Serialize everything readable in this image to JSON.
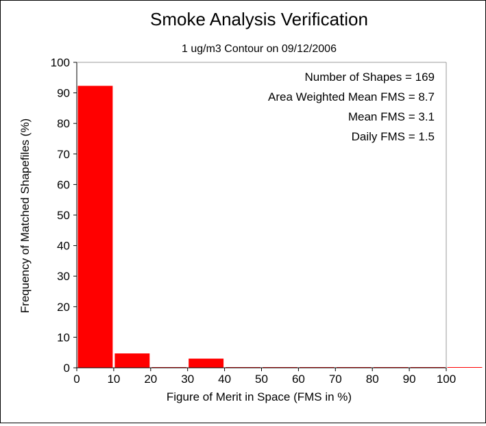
{
  "chart_data": {
    "type": "bar",
    "title": "Smoke Analysis Verification",
    "subtitle": "1 ug/m3 Contour on 09/12/2006",
    "xlabel": "Figure of Merit in Space (FMS in %)",
    "ylabel": "Frequency of Matched Shapefiles (%)",
    "xlim": [
      0,
      100
    ],
    "ylim": [
      0,
      100
    ],
    "x_ticks": [
      0,
      10,
      20,
      30,
      40,
      50,
      60,
      70,
      80,
      90,
      100
    ],
    "y_ticks": [
      0,
      10,
      20,
      30,
      40,
      50,
      60,
      70,
      80,
      90,
      100
    ],
    "bin_width": 10,
    "bins": [
      {
        "start": 0,
        "value": 92.3
      },
      {
        "start": 10,
        "value": 4.7
      },
      {
        "start": 20,
        "value": 0
      },
      {
        "start": 30,
        "value": 3.0
      },
      {
        "start": 40,
        "value": 0
      },
      {
        "start": 50,
        "value": 0
      },
      {
        "start": 60,
        "value": 0
      },
      {
        "start": 70,
        "value": 0
      },
      {
        "start": 80,
        "value": 0
      },
      {
        "start": 90,
        "value": 0
      },
      {
        "start": 100,
        "value": 0
      }
    ],
    "bar_color": "#ff0000",
    "grid": false,
    "annotations": [
      "Number of Shapes = 169",
      "Area Weighted Mean FMS = 8.7",
      "Mean FMS = 3.1",
      "Daily FMS = 1.5"
    ]
  }
}
